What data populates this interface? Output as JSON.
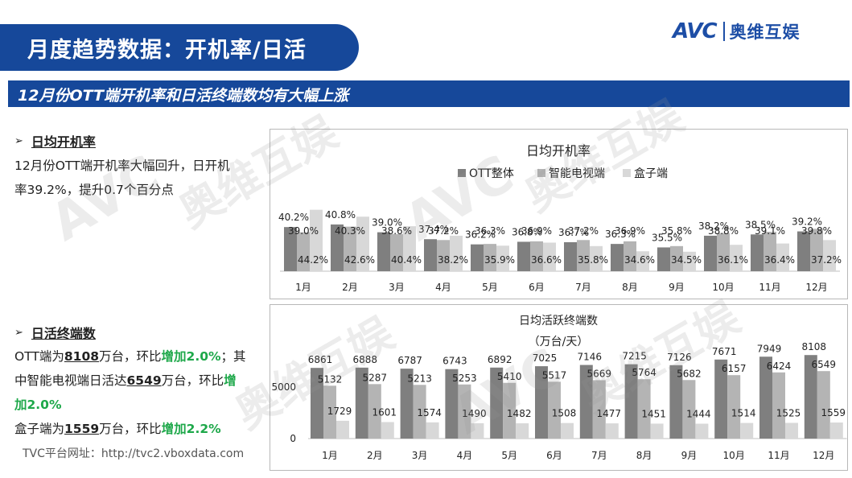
{
  "header": {
    "title": "月度趋势数据：开机率/日活",
    "logo_latin": "AVC",
    "logo_cn": "奥维互娱"
  },
  "subtitle": "12月份OTT端开机率和日活终端数均有大幅上涨",
  "section1": {
    "arrow": "➢",
    "heading": "日均开机率",
    "line1": "12月份OTT端开机率大幅回升，日开机",
    "line2": "率39.2%，提升0.7个百分点"
  },
  "section2": {
    "arrow": "➢",
    "heading": "日活终端数",
    "p1_a": "OTT端为",
    "p1_b": "8108",
    "p1_c": "万台，环比",
    "p1_d": "增加2.0%",
    "p1_e": "；其",
    "p2_a": "中智能电视端日活达",
    "p2_b": "6549",
    "p2_c": "万台，环比",
    "p2_d": "增",
    "p3_a": "加2.0%",
    "p4_a": "盒子端为",
    "p4_b": "1559",
    "p4_c": "万台，环比",
    "p4_d": "增加2.2%"
  },
  "footer_url": "TVC平台网址：http://tvc2.vboxdata.com",
  "colors": {
    "brand_blue": "#16489a",
    "series_ott": "#7f7f7f",
    "series_tv": "#b4b4b4",
    "series_box": "#d8d8d8",
    "highlight_green": "#1ea84a"
  },
  "chart_data": [
    {
      "type": "bar",
      "title": "日均开机率",
      "categories": [
        "1月",
        "2月",
        "3月",
        "4月",
        "5月",
        "6月",
        "7月",
        "8月",
        "9月",
        "10月",
        "11月",
        "12月"
      ],
      "series": [
        {
          "name": "OTT整体",
          "values": [
            40.2,
            40.8,
            39.0,
            37.4,
            36.2,
            36.8,
            36.7,
            36.3,
            35.5,
            38.2,
            38.5,
            39.2
          ],
          "labels": [
            "40.2%",
            "40.8%",
            "39.0%",
            "37.4%",
            "36.2%",
            "36.8%",
            "36.7%",
            "36.3%",
            "35.5%",
            "38.2%",
            "38.5%",
            "39.2%"
          ]
        },
        {
          "name": "智能电视端",
          "values": [
            39.0,
            40.3,
            38.6,
            37.2,
            36.3,
            36.9,
            37.2,
            36.9,
            35.8,
            38.8,
            39.1,
            39.8
          ],
          "labels": [
            "39.0%",
            "40.3%",
            "38.6%",
            "37.2%",
            "36.3%",
            "36.9%",
            "37.2%",
            "36.9%",
            "35.8%",
            "38.8%",
            "39.1%",
            "39.8%"
          ]
        },
        {
          "name": "盒子端",
          "values": [
            44.2,
            42.6,
            40.4,
            38.2,
            35.9,
            36.6,
            35.8,
            34.6,
            34.5,
            36.1,
            36.4,
            37.2
          ],
          "labels": [
            "44.2%",
            "42.6%",
            "40.4%",
            "38.2%",
            "35.9%",
            "36.6%",
            "35.8%",
            "34.6%",
            "34.5%",
            "36.1%",
            "36.4%",
            "37.2%"
          ]
        }
      ],
      "legend": "top",
      "grid": false
    },
    {
      "type": "bar",
      "title": "日均活跃终端数",
      "subtitle": "（万台/天）",
      "categories": [
        "1月",
        "2月",
        "3月",
        "4月",
        "5月",
        "6月",
        "7月",
        "8月",
        "9月",
        "10月",
        "11月",
        "12月"
      ],
      "series": [
        {
          "values": [
            6861,
            6888,
            6787,
            6743,
            6892,
            7025,
            7146,
            7215,
            7126,
            7671,
            7949,
            8108
          ]
        },
        {
          "values": [
            5132,
            5287,
            5213,
            5253,
            5410,
            5517,
            5669,
            5764,
            5682,
            6157,
            6424,
            6549
          ]
        },
        {
          "values": [
            1729,
            1601,
            1574,
            1490,
            1482,
            1508,
            1477,
            1451,
            1444,
            1514,
            1525,
            1559
          ]
        }
      ],
      "yticks": [
        "0",
        "5000"
      ],
      "ylim": [
        0,
        10000
      ],
      "grid": false
    }
  ]
}
